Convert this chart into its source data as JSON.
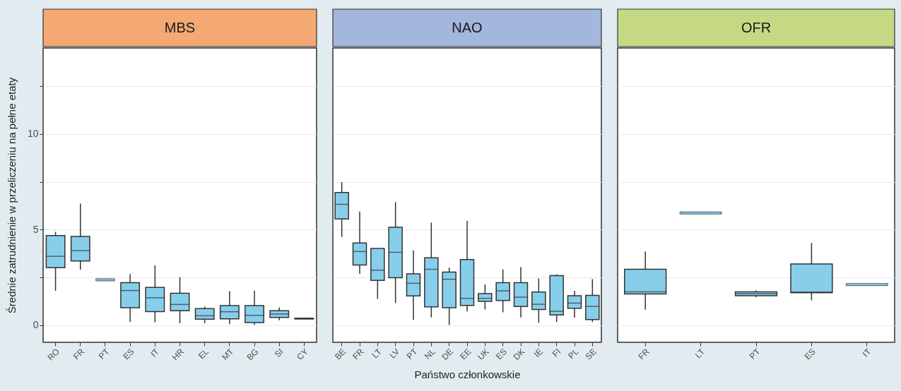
{
  "chart_data": [
    {
      "type": "box",
      "title": "MBS",
      "ylabel": "Średnie zatrudnienie w przeliczeniu na pełne etaty",
      "color": "#87ceeb",
      "grid": true,
      "ylim": [
        -0.9,
        14.5
      ],
      "yticks": [
        0,
        {
          "value": 2.5,
          "label": null
        },
        5,
        {
          "value": 7.5,
          "label": null
        },
        10,
        {
          "value": 12.5,
          "label": null
        }
      ],
      "categories": [
        "RO",
        "FR",
        "PT",
        "ES",
        "IT",
        "HR",
        "EL",
        "MT",
        "BG",
        "SI",
        "CY"
      ],
      "boxes": [
        {
          "low": 1.79,
          "q1": 3.01,
          "median": 3.6,
          "q3": 4.69,
          "high": 4.88
        },
        {
          "low": 2.9,
          "q1": 3.36,
          "median": 3.9,
          "q3": 4.64,
          "high": 6.36
        },
        {
          "low": 2.37,
          "q1": 2.37,
          "median": 2.37,
          "q3": 2.37,
          "high": 2.37
        },
        {
          "low": 0.17,
          "q1": 0.91,
          "median": 1.81,
          "q3": 2.22,
          "high": 2.67
        },
        {
          "low": 0.15,
          "q1": 0.71,
          "median": 1.43,
          "q3": 1.97,
          "high": 3.13
        },
        {
          "low": 0.1,
          "q1": 0.75,
          "median": 1.08,
          "q3": 1.67,
          "high": 2.51
        },
        {
          "low": 0.1,
          "q1": 0.31,
          "median": 0.49,
          "q3": 0.86,
          "high": 0.97
        },
        {
          "low": 0.05,
          "q1": 0.33,
          "median": 0.7,
          "q3": 1.02,
          "high": 1.78
        },
        {
          "low": 0.01,
          "q1": 0.13,
          "median": 0.51,
          "q3": 1.02,
          "high": 1.8
        },
        {
          "low": 0.25,
          "q1": 0.4,
          "median": 0.58,
          "q3": 0.75,
          "high": 0.92
        },
        {
          "low": 0.3,
          "q1": 0.32,
          "median": 0.34,
          "q3": 0.36,
          "high": 0.38
        }
      ]
    },
    {
      "type": "box",
      "title": "NAO",
      "xlabel": "Państwo członkowskie",
      "color": "#87ceeb",
      "grid": true,
      "tick_labels": "x",
      "ylim": [
        -0.9,
        14.5
      ],
      "yticks": [
        0,
        {
          "value": 2.5,
          "label": null
        },
        5,
        {
          "value": 7.5,
          "label": null
        },
        10,
        {
          "value": 12.5,
          "label": null
        }
      ],
      "categories": [
        "BE",
        "FR",
        "LT",
        "LV",
        "PT",
        "NL",
        "DE",
        "EE",
        "UK",
        "ES",
        "DK",
        "IE",
        "FI",
        "PL",
        "SE"
      ],
      "boxes": [
        {
          "low": 4.61,
          "q1": 5.55,
          "median": 6.32,
          "q3": 6.94,
          "high": 7.48
        },
        {
          "low": 2.68,
          "q1": 3.14,
          "median": 3.85,
          "q3": 4.3,
          "high": 5.94
        },
        {
          "low": 1.37,
          "q1": 2.34,
          "median": 2.88,
          "q3": 4.01,
          "high": 4.01
        },
        {
          "low": 1.16,
          "q1": 2.48,
          "median": 3.81,
          "q3": 5.12,
          "high": 6.43
        },
        {
          "low": 0.28,
          "q1": 1.53,
          "median": 2.19,
          "q3": 2.68,
          "high": 3.91
        },
        {
          "low": 0.4,
          "q1": 0.96,
          "median": 2.92,
          "q3": 3.52,
          "high": 5.36
        },
        {
          "low": 0.01,
          "q1": 0.91,
          "median": 2.4,
          "q3": 2.77,
          "high": 3.01
        },
        {
          "low": 0.72,
          "q1": 1.03,
          "median": 1.4,
          "q3": 3.43,
          "high": 5.45
        },
        {
          "low": 0.82,
          "q1": 1.24,
          "median": 1.4,
          "q3": 1.65,
          "high": 2.12
        },
        {
          "low": 0.67,
          "q1": 1.29,
          "median": 1.79,
          "q3": 2.22,
          "high": 2.92
        },
        {
          "low": 0.4,
          "q1": 0.97,
          "median": 1.46,
          "q3": 2.22,
          "high": 3.03
        },
        {
          "low": 0.12,
          "q1": 0.82,
          "median": 1.09,
          "q3": 1.73,
          "high": 2.44
        },
        {
          "low": 0.16,
          "q1": 0.53,
          "median": 0.72,
          "q3": 2.59,
          "high": 2.66
        },
        {
          "low": 0.39,
          "q1": 0.88,
          "median": 1.15,
          "q3": 1.54,
          "high": 1.8
        },
        {
          "low": 0.16,
          "q1": 0.29,
          "median": 0.98,
          "q3": 1.56,
          "high": 2.41
        }
      ]
    },
    {
      "type": "box",
      "title": "OFR",
      "color": "#87ceeb",
      "grid": true,
      "tick_labels": "x",
      "ylim": [
        -0.9,
        14.5
      ],
      "yticks": [
        0,
        {
          "value": 2.5,
          "label": null
        },
        5,
        {
          "value": 7.5,
          "label": null
        },
        10,
        {
          "value": 12.5,
          "label": null
        }
      ],
      "categories": [
        "FR",
        "LT",
        "PT",
        "ES",
        "IT"
      ],
      "boxes": [
        {
          "low": 0.81,
          "q1": 1.63,
          "median": 1.74,
          "q3": 2.92,
          "high": 3.85
        },
        {
          "low": 5.87,
          "q1": 5.87,
          "median": 5.87,
          "q3": 5.87,
          "high": 5.87
        },
        {
          "low": 1.46,
          "q1": 1.54,
          "median": 1.64,
          "q3": 1.74,
          "high": 1.81
        },
        {
          "low": 1.3,
          "q1": 1.69,
          "median": 1.73,
          "q3": 3.2,
          "high": 4.3
        },
        {
          "low": 2.12,
          "q1": 2.12,
          "median": 2.12,
          "q3": 2.12,
          "high": 2.12
        }
      ]
    }
  ]
}
